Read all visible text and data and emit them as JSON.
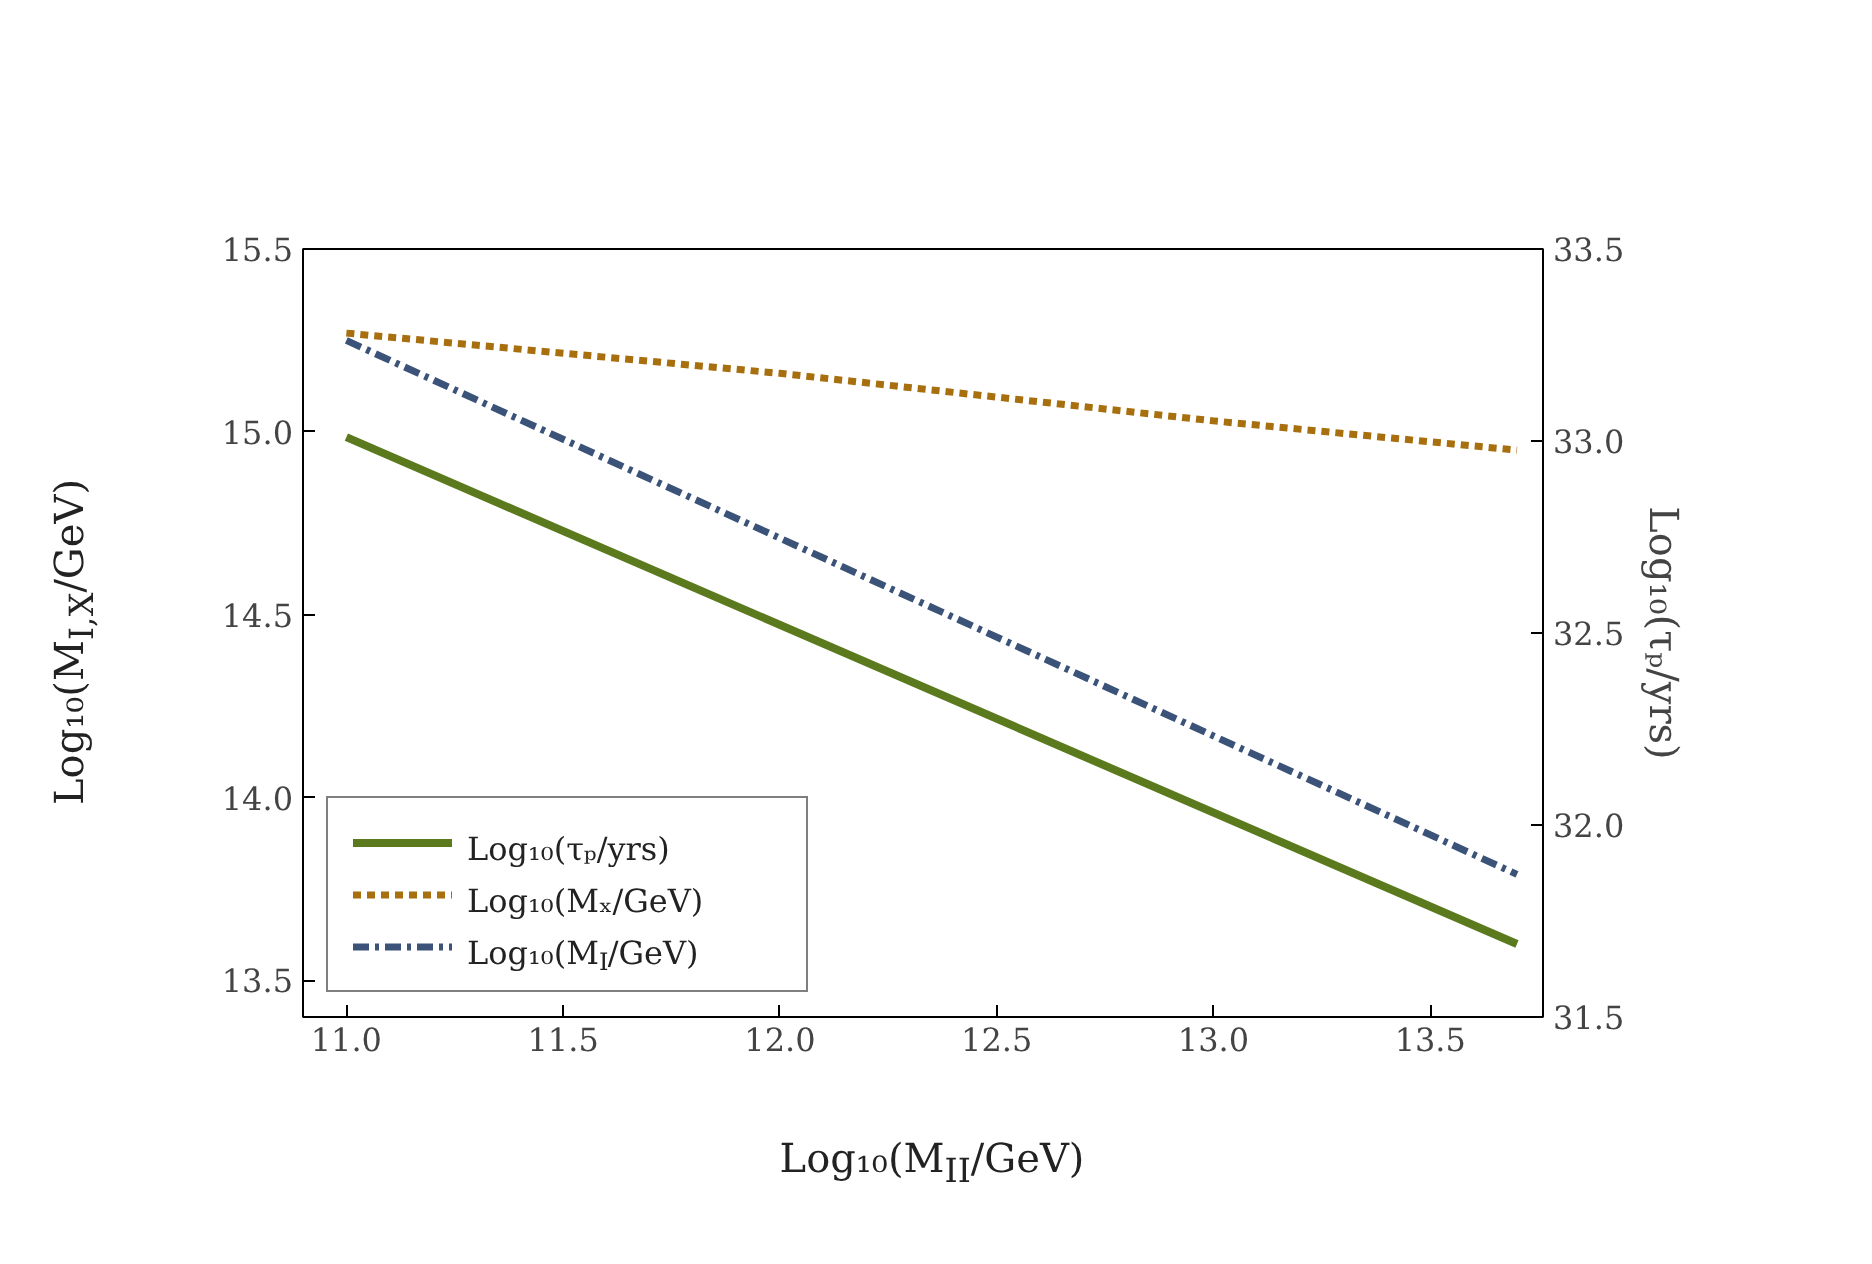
{
  "chart_data": {
    "type": "line",
    "xlabel": "Log₁₀(M$_{II}$/GeV)",
    "ylabel": "Log₁₀(M$_{I,X}$/GeV)",
    "y2label": "Log₁₀(τₚ/yrs)",
    "xlim": [
      10.9,
      13.76
    ],
    "ylim": [
      13.4,
      15.5
    ],
    "y2lim": [
      31.5,
      33.5
    ],
    "xticks": [
      {
        "value": 11,
        "label": "11.0"
      },
      11.5,
      {
        "value": 12,
        "label": "12.0"
      },
      12.5,
      {
        "value": 13,
        "label": "13.0"
      },
      13.5
    ],
    "yticks": [
      13.5,
      {
        "value": 14,
        "label": "14.0"
      },
      14.5,
      {
        "value": 15,
        "label": "15.0"
      },
      15.5
    ],
    "y2ticks": [
      31.5,
      {
        "value": 32,
        "label": "32.0"
      },
      32.5,
      {
        "value": 33,
        "label": "33.0"
      },
      33.5
    ],
    "grid": false,
    "legend": "bottom left",
    "marker": "none",
    "series": [
      {
        "name": "Log₁₀(τₚ/yrs)",
        "color": "#5b7a1e",
        "axis": "y2",
        "line_style": "solid",
        "x": [
          11.0,
          13.7
        ],
        "values": [
          33.01,
          31.69
        ]
      },
      {
        "name": "Log₁₀(Mₓ/GeV)",
        "color": "#a86f0f",
        "line_style": "dashed",
        "x": [
          11.0,
          12.0,
          13.0,
          13.7
        ],
        "values": [
          15.27,
          15.16,
          15.03,
          14.95
        ]
      },
      {
        "name": "Log₁₀(M$_{I}$/GeV)",
        "color": "#3b5378",
        "line_style": "dashdot",
        "x": [
          11.0,
          13.7
        ],
        "values": [
          15.25,
          13.79
        ]
      }
    ]
  }
}
